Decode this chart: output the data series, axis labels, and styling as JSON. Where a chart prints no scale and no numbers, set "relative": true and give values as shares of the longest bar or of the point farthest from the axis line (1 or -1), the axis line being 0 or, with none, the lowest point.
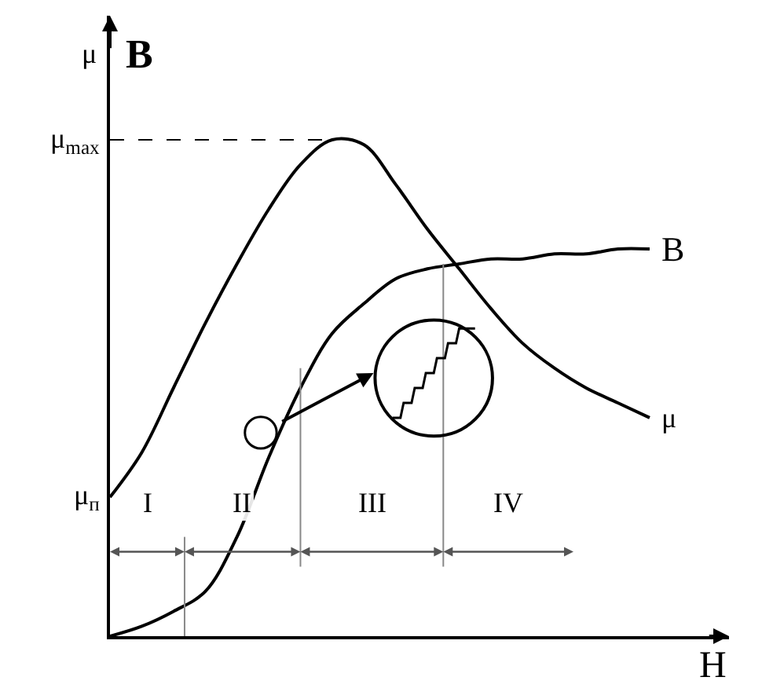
{
  "chart_data": {
    "type": "line",
    "relative": true,
    "xlabel": "H",
    "ylabel": "μ B",
    "categories": [
      null,
      null,
      null,
      null,
      null,
      null,
      null,
      null,
      null,
      null,
      null,
      null,
      null,
      null,
      null,
      null,
      null,
      null
    ],
    "series": [
      {
        "name": "B",
        "color": "#000000",
        "values": [
          0,
          0.02,
          0.05,
          0.09,
          0.2,
          0.36,
          0.5,
          0.61,
          0.67,
          0.72,
          0.74,
          0.75,
          0.76,
          0.76,
          0.77,
          0.77,
          0.78,
          0.78
        ]
      },
      {
        "name": "μ",
        "color": "#000000",
        "values": [
          0.28,
          0.37,
          0.5,
          0.63,
          0.75,
          0.86,
          0.95,
          1.0,
          0.99,
          0.91,
          0.82,
          0.74,
          0.66,
          0.59,
          0.54,
          0.5,
          0.47,
          0.44
        ]
      }
    ],
    "ref_lines": [
      {
        "axis": "y",
        "value": 1.0,
        "label": "μ$_{max}$",
        "line_style": "dashed",
        "color": "#000000"
      }
    ],
    "annotations": [
      "μ$_{п}$",
      "I",
      "II",
      "III",
      "IV"
    ],
    "legend": false,
    "marker": "none",
    "line_style": "solid"
  }
}
